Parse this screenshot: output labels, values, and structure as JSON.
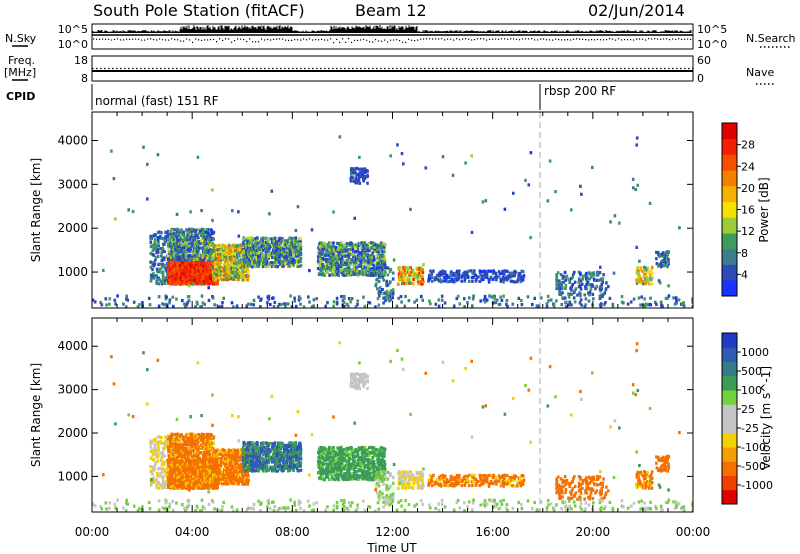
{
  "header": {
    "title": "South Pole Station (fitACF)",
    "beam": "Beam 12",
    "date": "02/Jun/2014"
  },
  "sky_panel": {
    "left_label": "N.Sky",
    "right_label": "N.Search",
    "left_ticks": [
      "10^5",
      "10^0"
    ],
    "right_ticks": [
      "10^5",
      "10^0"
    ]
  },
  "freq_panel": {
    "left_label_line1": "Freq.",
    "left_label_line2": "[MHz]",
    "right_label": "Nave",
    "left_ticks": [
      "18",
      "8"
    ],
    "right_ticks": [
      "60",
      "0"
    ],
    "freq_level_mhz": 12,
    "nave_level": 30
  },
  "cpid_panel": {
    "label": "CPID",
    "segments": [
      {
        "start_hour": 0,
        "end_hour": 18,
        "text": "normal (fast) 151 RF"
      },
      {
        "start_hour": 18,
        "end_hour": 24,
        "text": "rbsp 200 RF"
      }
    ]
  },
  "x_axis": {
    "label": "Time UT",
    "range_hours": [
      0,
      24
    ],
    "tick_labels": [
      "00:00",
      "04:00",
      "08:00",
      "12:00",
      "16:00",
      "20:00",
      "00:00"
    ],
    "tick_hours": [
      0,
      4,
      8,
      12,
      16,
      20,
      24
    ]
  },
  "y_axis": {
    "label": "Slant Range [km]",
    "range_km": [
      180,
      4650
    ],
    "tick_labels": [
      "1000",
      "2000",
      "3000",
      "4000"
    ],
    "tick_values": [
      1000,
      2000,
      3000,
      4000
    ]
  },
  "colorbars": {
    "power": {
      "label": "Power [dB]",
      "tick_labels": [
        "4",
        "8",
        "12",
        "16",
        "20",
        "24",
        "28"
      ],
      "colors": [
        "#1434ff",
        "#2e49b8",
        "#3c7d8c",
        "#3e9c5a",
        "#9ccc3a",
        "#f5e000",
        "#f5b000",
        "#f58000",
        "#f55000",
        "#f02000",
        "#e00000"
      ]
    },
    "velocity": {
      "label": "Velocity [m s^-1]",
      "tick_labels": [
        "1000",
        "500",
        "100",
        "25",
        "-25",
        "-100",
        "-500",
        "-1000"
      ],
      "colors": [
        "#1e3cc8",
        "#2f5bb4",
        "#347c8a",
        "#3a9c56",
        "#72d23c",
        "#c4c4c4",
        "#c4c4c4",
        "#f5d000",
        "#f5a000",
        "#f57000",
        "#f04000",
        "#e00000"
      ]
    }
  },
  "chart_data": {
    "type": "heatmap",
    "description_fields": [
      "start_hour",
      "end_hour",
      "range_min_km",
      "range_max_km",
      "density",
      "power_db_range",
      "velocity_mps_range"
    ],
    "echo_regions": [
      {
        "start_hour": 2.3,
        "end_hour": 3.2,
        "range_min_km": 700,
        "range_max_km": 1900,
        "density": 0.35,
        "power_db_range": [
          4,
          12
        ],
        "velocity_mps_range": [
          -100,
          25
        ]
      },
      {
        "start_hour": 3.0,
        "end_hour": 5.0,
        "range_min_km": 700,
        "range_max_km": 1350,
        "density": 0.95,
        "power_db_range": [
          24,
          30
        ],
        "velocity_mps_range": [
          -500,
          -25
        ]
      },
      {
        "start_hour": 3.0,
        "end_hour": 4.8,
        "range_min_km": 1250,
        "range_max_km": 1950,
        "density": 0.7,
        "power_db_range": [
          4,
          16
        ],
        "velocity_mps_range": [
          -500,
          -25
        ]
      },
      {
        "start_hour": 4.8,
        "end_hour": 6.2,
        "range_min_km": 800,
        "range_max_km": 1600,
        "density": 0.8,
        "power_db_range": [
          8,
          24
        ],
        "velocity_mps_range": [
          -500,
          -25
        ]
      },
      {
        "start_hour": 6.0,
        "end_hour": 8.3,
        "range_min_km": 1100,
        "range_max_km": 1750,
        "density": 0.7,
        "power_db_range": [
          4,
          16
        ],
        "velocity_mps_range": [
          100,
          1000
        ]
      },
      {
        "start_hour": 9.0,
        "end_hour": 11.7,
        "range_min_km": 900,
        "range_max_km": 1650,
        "density": 0.65,
        "power_db_range": [
          4,
          16
        ],
        "velocity_mps_range": [
          25,
          500
        ]
      },
      {
        "start_hour": 11.3,
        "end_hour": 12.0,
        "range_min_km": 300,
        "range_max_km": 1100,
        "density": 0.3,
        "power_db_range": [
          4,
          12
        ],
        "velocity_mps_range": [
          -25,
          100
        ]
      },
      {
        "start_hour": 12.2,
        "end_hour": 13.2,
        "range_min_km": 700,
        "range_max_km": 1100,
        "density": 0.6,
        "power_db_range": [
          12,
          28
        ],
        "velocity_mps_range": [
          -100,
          25
        ]
      },
      {
        "start_hour": 10.3,
        "end_hour": 11.0,
        "range_min_km": 3000,
        "range_max_km": 3350,
        "density": 0.5,
        "power_db_range": [
          4,
          8
        ],
        "velocity_mps_range": [
          -25,
          25
        ]
      },
      {
        "start_hour": 13.4,
        "end_hour": 17.2,
        "range_min_km": 750,
        "range_max_km": 1000,
        "density": 0.4,
        "power_db_range": [
          4,
          8
        ],
        "velocity_mps_range": [
          -500,
          -25
        ]
      },
      {
        "start_hour": 18.5,
        "end_hour": 20.5,
        "range_min_km": 450,
        "range_max_km": 950,
        "density": 0.35,
        "power_db_range": [
          4,
          12
        ],
        "velocity_mps_range": [
          -500,
          -100
        ]
      },
      {
        "start_hour": 21.7,
        "end_hour": 22.3,
        "range_min_km": 700,
        "range_max_km": 1100,
        "density": 0.55,
        "power_db_range": [
          8,
          24
        ],
        "velocity_mps_range": [
          -500,
          -25
        ]
      },
      {
        "start_hour": 22.5,
        "end_hour": 23.0,
        "range_min_km": 1100,
        "range_max_km": 1450,
        "density": 0.5,
        "power_db_range": [
          4,
          12
        ],
        "velocity_mps_range": [
          -500,
          -100
        ]
      },
      {
        "start_hour": 0.0,
        "end_hour": 24.0,
        "range_min_km": 180,
        "range_max_km": 450,
        "density": 0.12,
        "power_db_range": [
          4,
          12
        ],
        "velocity_mps_range": [
          -25,
          100
        ]
      }
    ]
  }
}
